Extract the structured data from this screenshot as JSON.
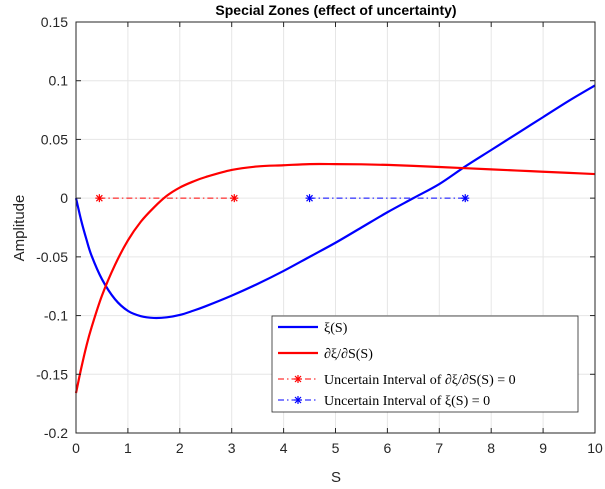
{
  "chart_data": {
    "type": "line",
    "title": "Special Zones (effect of uncertainty)",
    "xlabel": "S",
    "ylabel": "Amplitude",
    "xlim": [
      0,
      10
    ],
    "ylim": [
      -0.2,
      0.15
    ],
    "xticks": [
      "0",
      "1",
      "2",
      "3",
      "4",
      "5",
      "6",
      "7",
      "8",
      "9",
      "10"
    ],
    "yticks": [
      "0.15",
      "0.1",
      "0.05",
      "0",
      "-0.05",
      "-0.1",
      "-0.15",
      "-0.2"
    ],
    "grid": true,
    "legend_position": "bottom-right",
    "series": [
      {
        "name": "ξ(S)",
        "color": "#0000ff",
        "style": "solid",
        "x": [
          0,
          0.1,
          0.2,
          0.3,
          0.5,
          0.75,
          1.0,
          1.25,
          1.5,
          1.75,
          2.0,
          2.25,
          2.5,
          3.0,
          3.5,
          4.0,
          4.5,
          5.0,
          5.5,
          6.0,
          6.5,
          7.0,
          7.5,
          8.0,
          8.5,
          9.0,
          9.5,
          10.0
        ],
        "y": [
          0,
          -0.019,
          -0.035,
          -0.049,
          -0.069,
          -0.086,
          -0.096,
          -0.1005,
          -0.102,
          -0.1015,
          -0.0995,
          -0.096,
          -0.092,
          -0.083,
          -0.073,
          -0.062,
          -0.05,
          -0.038,
          -0.025,
          -0.012,
          0.0,
          0.012,
          0.027,
          0.041,
          0.055,
          0.069,
          0.083,
          0.096
        ]
      },
      {
        "name": "∂ξ/∂S(S)",
        "color": "#ff0000",
        "style": "solid",
        "x": [
          0,
          0.1,
          0.2,
          0.3,
          0.5,
          0.75,
          1.0,
          1.25,
          1.5,
          1.75,
          2.0,
          2.25,
          2.5,
          3.0,
          3.5,
          4.0,
          4.5,
          5.0,
          5.5,
          6.0,
          6.5,
          7.0,
          7.5,
          8.0,
          8.5,
          9.0,
          9.5,
          10.0
        ],
        "y": [
          -0.166,
          -0.145,
          -0.126,
          -0.11,
          -0.083,
          -0.057,
          -0.036,
          -0.02,
          -0.008,
          0.002,
          0.009,
          0.014,
          0.018,
          0.024,
          0.027,
          0.028,
          0.029,
          0.029,
          0.0288,
          0.0283,
          0.0275,
          0.0265,
          0.0255,
          0.0245,
          0.0235,
          0.0225,
          0.0215,
          0.0205
        ]
      },
      {
        "name": "Uncertain Interval of ∂ξ/∂S(S) = 0",
        "color": "#ff0000",
        "style": "dashdot",
        "marker": "*",
        "x": [
          0.45,
          3.05
        ],
        "y": [
          0,
          0
        ]
      },
      {
        "name": "Uncertain Interval of ξ(S) = 0",
        "color": "#0000ff",
        "style": "dashdot",
        "marker": "*",
        "x": [
          4.5,
          7.5
        ],
        "y": [
          0,
          0
        ]
      }
    ]
  }
}
